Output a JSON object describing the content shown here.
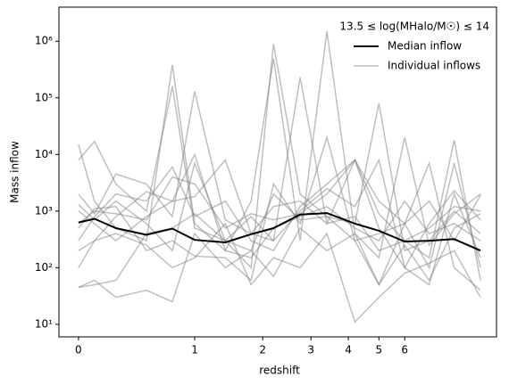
{
  "chart_data": {
    "type": "line",
    "xlabel": "redshift",
    "ylabel": "Mass inflow",
    "legend_title": "13.5 ≤ log(MHalo/M☉) ≤ 14",
    "legend": "upper right",
    "xscale": "log1p",
    "yscale": "log",
    "x": [
      0,
      0.1,
      0.25,
      0.5,
      0.75,
      1.0,
      1.4,
      1.8,
      2.2,
      2.75,
      3.4,
      4.2,
      5.0,
      6.0,
      7.1,
      8.4,
      10
    ],
    "xlim": [
      -0.11,
      11.1
    ],
    "xticks": [
      0,
      1,
      2,
      3,
      4,
      5,
      6
    ],
    "ylim": [
      6,
      4000000
    ],
    "yticks": [
      {
        "value": 10,
        "label": "10¹"
      },
      {
        "value": 100,
        "label": "10²"
      },
      {
        "value": 1000,
        "label": "10³"
      },
      {
        "value": 10000,
        "label": "10⁴"
      },
      {
        "value": 100000,
        "label": "10⁵"
      },
      {
        "value": 1000000,
        "label": "10⁶"
      }
    ],
    "series": [
      {
        "name": "Median inflow",
        "color": "#000000",
        "values": [
          630,
          730,
          500,
          380,
          490,
          310,
          280,
          390,
          500,
          870,
          920,
          600,
          450,
          290,
          300,
          320,
          200
        ]
      },
      {
        "name": "Individual inflows",
        "color": "#808080",
        "lines": [
          [
            15000,
            1500,
            500,
            300,
            380000,
            600,
            200,
            150,
            500,
            800,
            1200,
            500,
            300,
            1500,
            400,
            600,
            300
          ],
          [
            8000,
            17000,
            3000,
            1000,
            160000,
            500,
            300,
            100,
            900000,
            2000,
            800,
            600,
            80000,
            200,
            300,
            1000,
            400
          ],
          [
            2000,
            900,
            4500,
            3000,
            800,
            130000,
            700,
            400,
            300,
            230000,
            600,
            8000,
            900,
            300,
            150,
            18000,
            60
          ],
          [
            1000,
            600,
            300,
            800,
            1500,
            10000,
            200,
            1500,
            500000,
            300,
            1500000,
            400,
            150,
            20000,
            250,
            900,
            2000
          ],
          [
            500,
            1100,
            1200,
            200,
            300,
            160,
            150,
            60,
            3000,
            600,
            20000,
            300,
            50,
            600,
            7000,
            100,
            40
          ],
          [
            300,
            800,
            2000,
            1500,
            6000,
            800,
            1500,
            300,
            200,
            1200,
            3000,
            8000,
            500,
            100,
            600,
            2300,
            700
          ],
          [
            100,
            300,
            400,
            250,
            100,
            150,
            600,
            50,
            150,
            100,
            400,
            11,
            30,
            80,
            120,
            200,
            30
          ],
          [
            45,
            60,
            30,
            40,
            25,
            400,
            100,
            200,
            70,
            500,
            200,
            400,
            50,
            250,
            60,
            500,
            900
          ],
          [
            1300,
            700,
            1500,
            600,
            200,
            7000,
            300,
            800,
            300,
            1000,
            2500,
            1200,
            8000,
            100,
            50,
            2000,
            150
          ],
          [
            45,
            50,
            60,
            400,
            500,
            900,
            300,
            200,
            2000,
            700,
            800,
            300,
            400,
            600,
            100,
            7000,
            100
          ],
          [
            200,
            300,
            800,
            2200,
            1500,
            1800,
            8000,
            400,
            1200,
            1500,
            600,
            800,
            200,
            300,
            500,
            1200,
            1000
          ],
          [
            600,
            1000,
            900,
            700,
            4000,
            3000,
            500,
            900,
            700,
            900,
            2000,
            8000,
            1500,
            600,
            1500,
            300,
            1900
          ]
        ]
      }
    ]
  }
}
